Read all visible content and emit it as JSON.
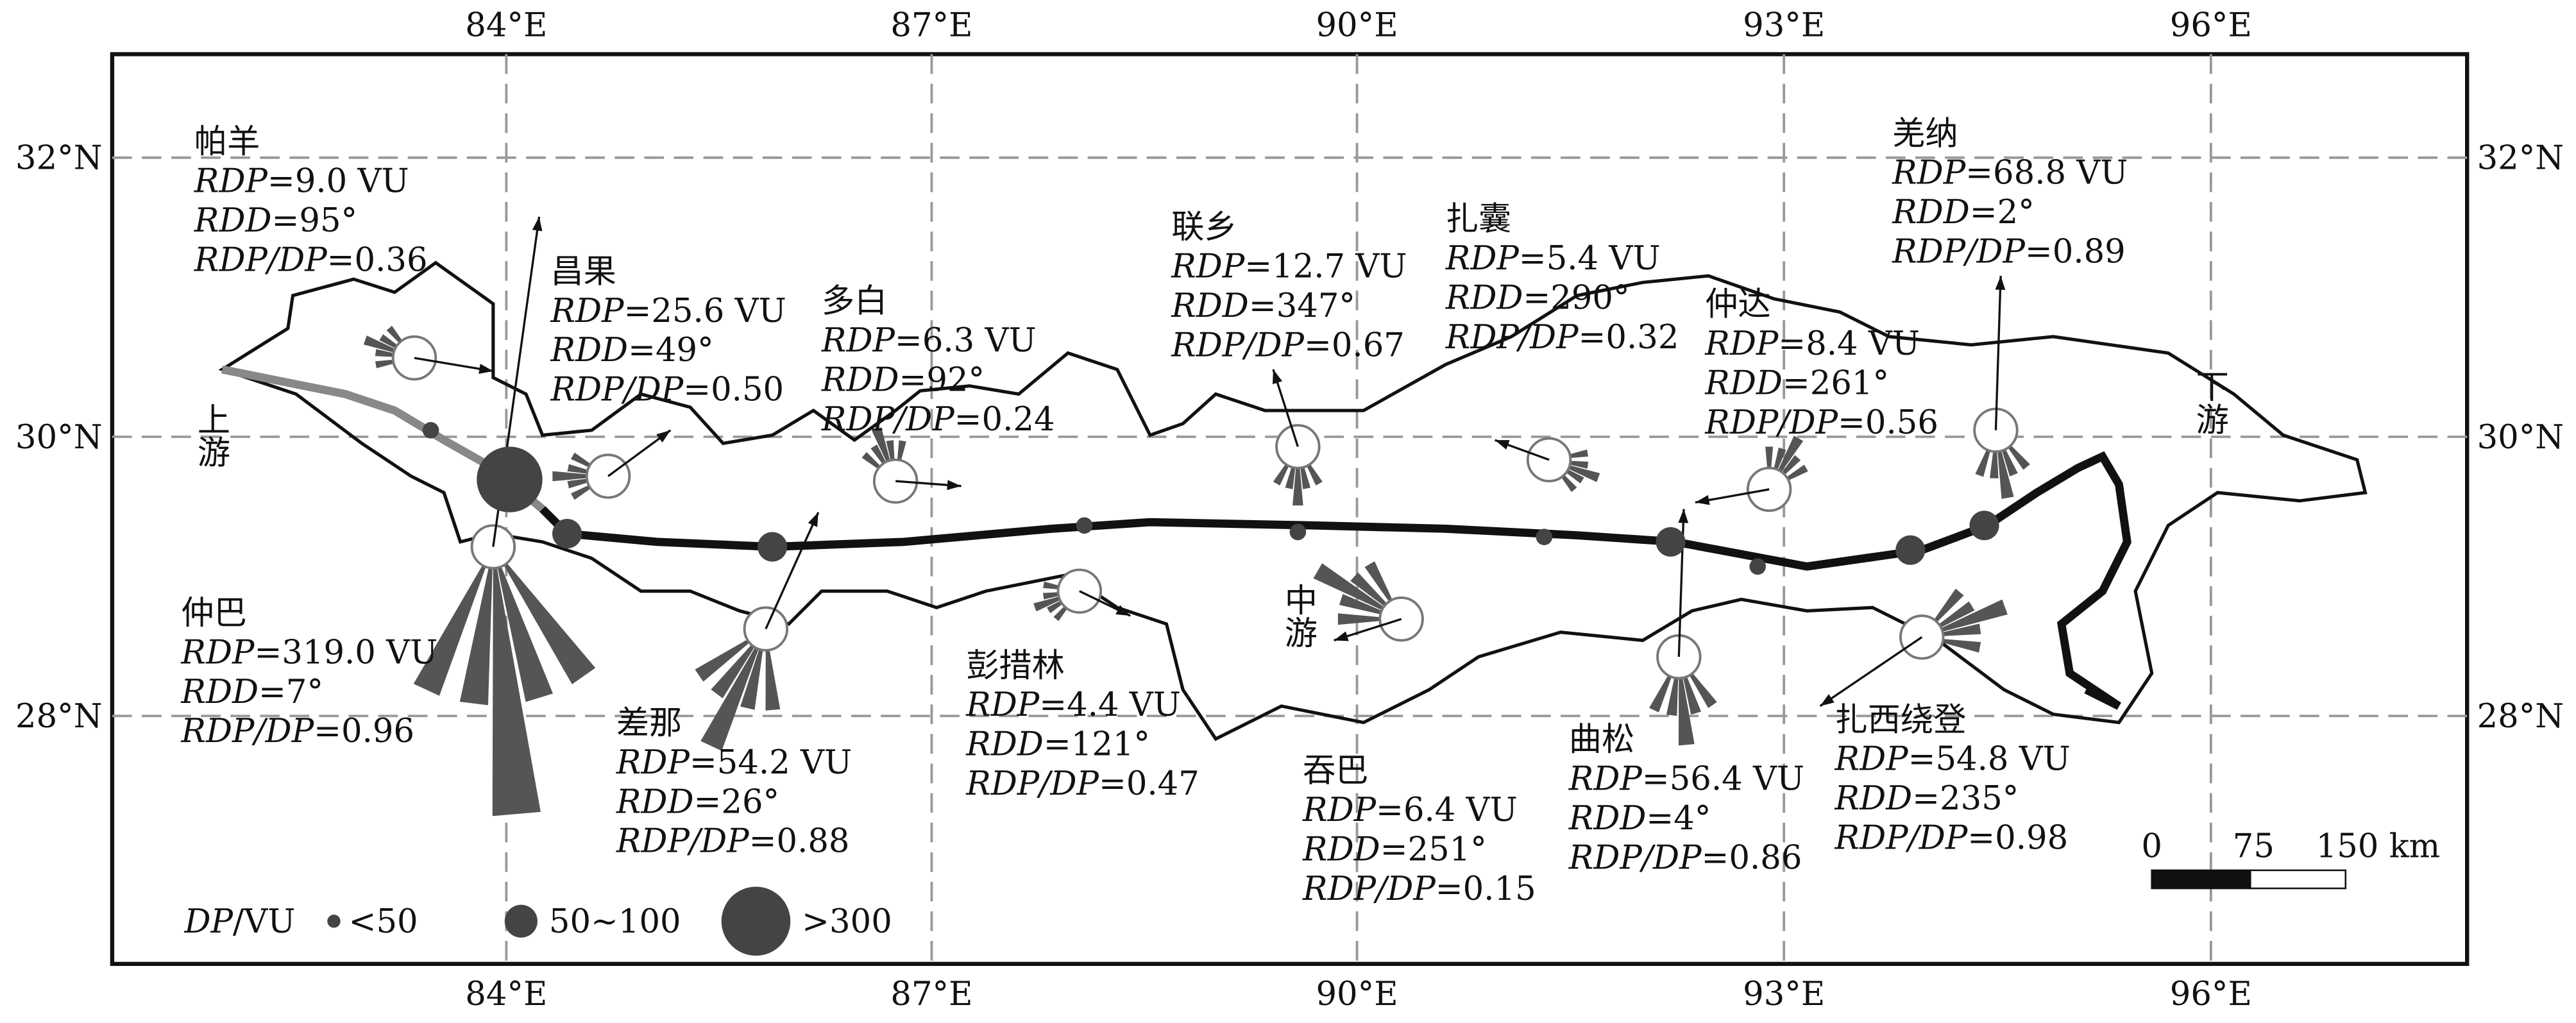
{
  "lon_labels": [
    "84°E",
    "87°E",
    "90°E",
    "93°E",
    "96°E"
  ],
  "lat_labels": [
    "32°N",
    "30°N",
    "28°N"
  ],
  "stations": [
    {
      "name": "帕羊",
      "lines": [
        [
          "RDP",
          "=9.0 VU"
        ],
        [
          "RDD",
          "=95°"
        ],
        [
          "RDP/DP",
          "=0.36"
        ]
      ]
    },
    {
      "name": "昌果",
      "lines": [
        [
          "RDP",
          "=25.6 VU"
        ],
        [
          "RDD",
          "=49°"
        ],
        [
          "RDP/DP",
          "=0.50"
        ]
      ]
    },
    {
      "name": "多白",
      "lines": [
        [
          "RDP",
          "=6.3 VU"
        ],
        [
          "RDD",
          "=92°"
        ],
        [
          "RDP/DP",
          "=0.24"
        ]
      ]
    },
    {
      "name": "联乡",
      "lines": [
        [
          "RDP",
          "=12.7 VU"
        ],
        [
          "RDD",
          "=347°"
        ],
        [
          "RDP/DP",
          "=0.67"
        ]
      ]
    },
    {
      "name": "扎囊",
      "lines": [
        [
          "RDP",
          "=5.4 VU"
        ],
        [
          "RDD",
          "=290°"
        ],
        [
          "RDP/DP",
          "=0.32"
        ]
      ]
    },
    {
      "name": "仲达",
      "lines": [
        [
          "RDP",
          "=8.4 VU"
        ],
        [
          "RDD",
          "=261°"
        ],
        [
          "RDP/DP",
          "=0.56"
        ]
      ]
    },
    {
      "name": "羌纳",
      "lines": [
        [
          "RDP",
          "=68.8 VU"
        ],
        [
          "RDD",
          "=2°"
        ],
        [
          "RDP/DP",
          "=0.89"
        ]
      ]
    },
    {
      "name": "仲巴",
      "lines": [
        [
          "RDP",
          "=319.0 VU"
        ],
        [
          "RDD",
          "=7°"
        ],
        [
          "RDP/DP",
          "=0.96"
        ]
      ]
    },
    {
      "name": "差那",
      "lines": [
        [
          "RDP",
          "=54.2 VU"
        ],
        [
          "RDD",
          "=26°"
        ],
        [
          "RDP/DP",
          "=0.88"
        ]
      ]
    },
    {
      "name": "彭措林",
      "lines": [
        [
          "RDP",
          "=4.4 VU"
        ],
        [
          "RDD",
          "=121°"
        ],
        [
          "RDP/DP",
          "=0.47"
        ]
      ]
    },
    {
      "name": "吞巴",
      "lines": [
        [
          "RDP",
          "=6.4 VU"
        ],
        [
          "RDD",
          "=251°"
        ],
        [
          "RDP/DP",
          "=0.15"
        ]
      ]
    },
    {
      "name": "曲松",
      "lines": [
        [
          "RDP",
          "=56.4 VU"
        ],
        [
          "RDD",
          "=4°"
        ],
        [
          "RDP/DP",
          "=0.86"
        ]
      ]
    },
    {
      "name": "扎西绕登",
      "lines": [
        [
          "RDP",
          "=54.8 VU"
        ],
        [
          "RDD",
          "=235°"
        ],
        [
          "RDP/DP",
          "=0.98"
        ]
      ]
    }
  ],
  "regions": [
    "上游",
    "中游",
    "下游"
  ],
  "legend": {
    "title": [
      "DP",
      "/VU"
    ],
    "classes": [
      "<50",
      "50~100",
      ">300"
    ]
  },
  "scale_bar": [
    "0",
    "75",
    "150 km"
  ]
}
